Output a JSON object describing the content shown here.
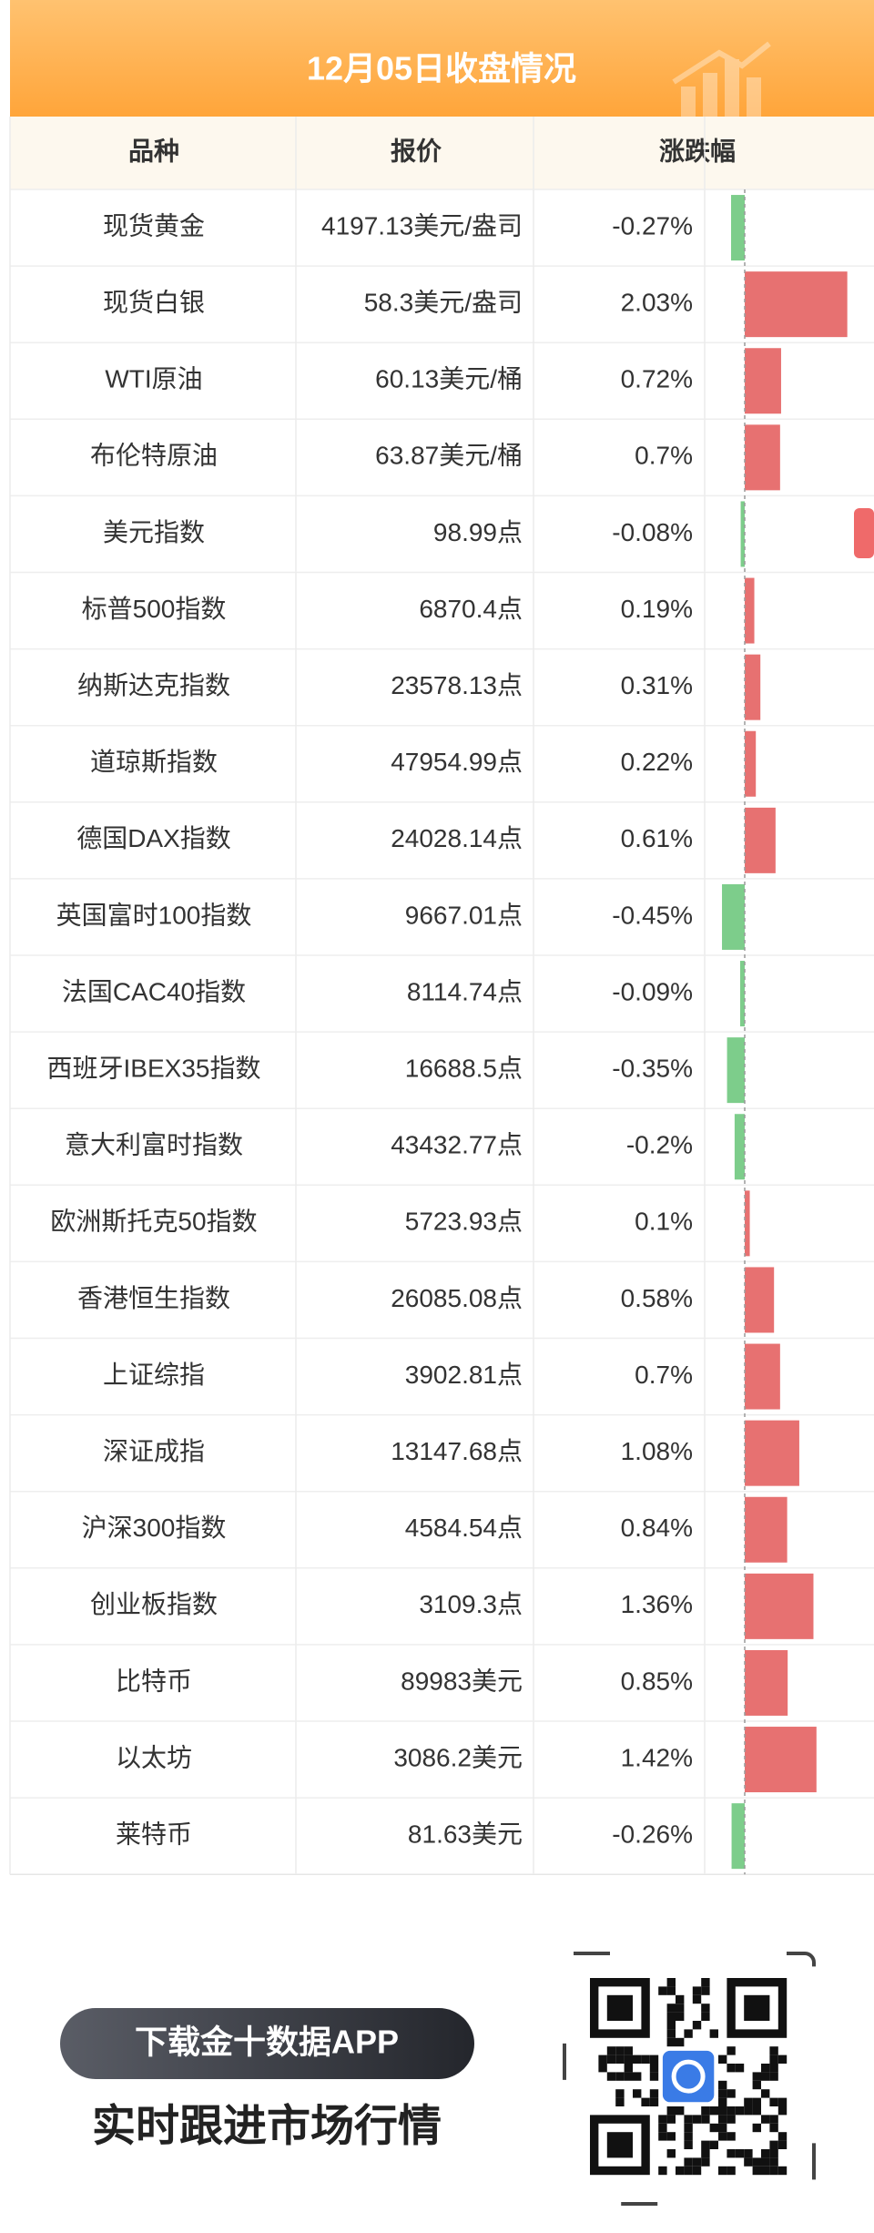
{
  "header": {
    "title": "12月05日收盘情况"
  },
  "table": {
    "columns": [
      "品种",
      "报价",
      "涨跌幅"
    ],
    "rows": [
      {
        "name": "现货黄金",
        "price": "4197.13美元/盎司"
      },
      {
        "name": "现货白银",
        "price": "58.3美元/盎司"
      },
      {
        "name": "WTI原油",
        "price": "60.13美元/桶"
      },
      {
        "name": "布伦特原油",
        "price": "63.87美元/桶"
      },
      {
        "name": "美元指数",
        "price": "98.99点"
      },
      {
        "name": "标普500指数",
        "price": "6870.4点"
      },
      {
        "name": "纳斯达克指数",
        "price": "23578.13点"
      },
      {
        "name": "道琼斯指数",
        "price": "47954.99点"
      },
      {
        "name": "德国DAX指数",
        "price": "24028.14点"
      },
      {
        "name": "英国富时100指数",
        "price": "9667.01点"
      },
      {
        "name": "法国CAC40指数",
        "price": "8114.74点"
      },
      {
        "name": "西班牙IBEX35指数",
        "price": "16688.5点"
      },
      {
        "name": "意大利富时指数",
        "price": "43432.77点"
      },
      {
        "name": "欧洲斯托克50指数",
        "price": "5723.93点"
      },
      {
        "name": "香港恒生指数",
        "price": "26085.08点"
      },
      {
        "name": "上证综指",
        "price": "3902.81点"
      },
      {
        "name": "深证成指",
        "price": "13147.68点"
      },
      {
        "name": "沪深300指数",
        "price": "4584.54点"
      },
      {
        "name": "创业板指数",
        "price": "3109.3点"
      },
      {
        "name": "比特币",
        "price": "89983美元"
      },
      {
        "name": "以太坊",
        "price": "3086.2美元"
      },
      {
        "name": "莱特币",
        "price": "81.63美元"
      }
    ]
  },
  "changes": {
    "values": [
      -0.27,
      2.03,
      0.72,
      0.7,
      -0.08,
      0.19,
      0.31,
      0.22,
      0.61,
      -0.45,
      -0.09,
      -0.35,
      -0.2,
      0.1,
      0.58,
      0.7,
      1.08,
      0.84,
      1.36,
      0.85,
      1.42,
      -0.26
    ],
    "value_labels": [
      "-0.27%",
      "2.03%",
      "0.72%",
      "0.7%",
      "-0.08%",
      "0.19%",
      "0.31%",
      "0.22%",
      "0.61%",
      "-0.45%",
      "-0.09%",
      "-0.35%",
      "-0.2%",
      "0.1%",
      "0.58%",
      "0.7%",
      "1.08%",
      "0.84%",
      "1.36%",
      "0.85%",
      "1.42%",
      "-0.26%"
    ],
    "up_color": "#e77171",
    "down_color": "#7dcd8b"
  },
  "footer": {
    "button": "下载金十数据APP",
    "slogan": "实时跟进市场行情"
  }
}
